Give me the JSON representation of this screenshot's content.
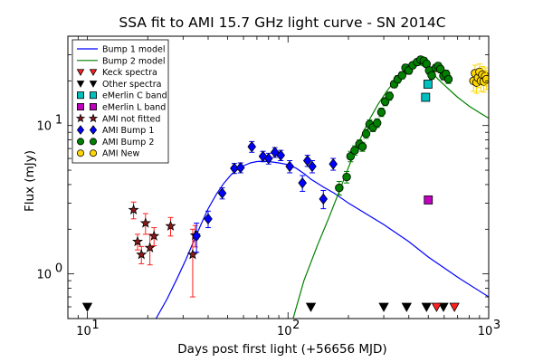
{
  "chart_data": {
    "type": "scatter",
    "title": "SSA fit to AMI 15.7 GHz light curve - SN 2014C",
    "xlabel": "Days post first light (+56656 MJD)",
    "ylabel": "Flux (mJy)",
    "xscale": "log",
    "yscale": "log",
    "xlim": [
      8,
      1000
    ],
    "ylim": [
      0.5,
      40
    ],
    "x_ticks": [
      {
        "value": 10,
        "label": "10^1",
        "base": "10",
        "exp": "1"
      },
      {
        "value": 100,
        "label": "10^2",
        "base": "10",
        "exp": "2"
      },
      {
        "value": 1000,
        "label": "10^3",
        "base": "10",
        "exp": "3"
      }
    ],
    "y_ticks": [
      {
        "value": 1,
        "label": "10^0",
        "base": "10",
        "exp": "0"
      },
      {
        "value": 10,
        "label": "10^1",
        "base": "10",
        "exp": "1"
      }
    ],
    "legend_position": "top-left",
    "legend": [
      {
        "label": "Bump 1 model",
        "type": "line",
        "color": "#0000ff"
      },
      {
        "label": "Bump 2 model",
        "type": "line",
        "color": "#008000"
      },
      {
        "label": "Keck spectra",
        "type": "marker",
        "marker": "triangle-down",
        "color": "#ff2020"
      },
      {
        "label": "Other spectra",
        "type": "marker",
        "marker": "triangle-down",
        "color": "#000000"
      },
      {
        "label": "eMerlin C band",
        "type": "marker",
        "marker": "square",
        "color": "#00bfbf"
      },
      {
        "label": "eMerlin L band",
        "type": "marker",
        "marker": "square",
        "color": "#bf00bf"
      },
      {
        "label": "AMI not fitted",
        "type": "marker",
        "marker": "star",
        "color": "#8b1a1a"
      },
      {
        "label": "AMI Bump 1",
        "type": "marker",
        "marker": "diamond",
        "color": "#0000ff"
      },
      {
        "label": "AMI Bump 2",
        "type": "marker",
        "marker": "circle",
        "color": "#008000"
      },
      {
        "label": "AMI New",
        "type": "marker",
        "marker": "circle",
        "color": "#ffd700"
      }
    ],
    "series": [
      {
        "name": "Bump 1 model",
        "type": "line",
        "color": "#0000ff",
        "points": [
          [
            22,
            0.5
          ],
          [
            25,
            0.68
          ],
          [
            28,
            0.93
          ],
          [
            31,
            1.25
          ],
          [
            34,
            1.68
          ],
          [
            37,
            2.18
          ],
          [
            40,
            2.75
          ],
          [
            44,
            3.45
          ],
          [
            48,
            4.1
          ],
          [
            52,
            4.65
          ],
          [
            56,
            5.05
          ],
          [
            60,
            5.35
          ],
          [
            65,
            5.6
          ],
          [
            70,
            5.72
          ],
          [
            75,
            5.75
          ],
          [
            80,
            5.72
          ],
          [
            90,
            5.6
          ],
          [
            100,
            5.45
          ],
          [
            110,
            5.15
          ],
          [
            120,
            4.75
          ],
          [
            130,
            4.35
          ],
          [
            150,
            3.85
          ],
          [
            170,
            3.5
          ],
          [
            200,
            3.0
          ],
          [
            300,
            2.15
          ],
          [
            400,
            1.65
          ],
          [
            500,
            1.3
          ],
          [
            700,
            0.95
          ],
          [
            1000,
            0.7
          ]
        ]
      },
      {
        "name": "Bump 2 model",
        "type": "line",
        "color": "#008000",
        "points": [
          [
            106,
            0.5
          ],
          [
            120,
            0.9
          ],
          [
            140,
            1.55
          ],
          [
            160,
            2.4
          ],
          [
            180,
            3.6
          ],
          [
            200,
            5.2
          ],
          [
            220,
            7.2
          ],
          [
            250,
            10.5
          ],
          [
            280,
            13.8
          ],
          [
            310,
            17.0
          ],
          [
            340,
            20.0
          ],
          [
            370,
            22.5
          ],
          [
            400,
            24.3
          ],
          [
            430,
            25.5
          ],
          [
            460,
            25.6
          ],
          [
            490,
            24.5
          ],
          [
            520,
            22.8
          ],
          [
            560,
            20.5
          ],
          [
            620,
            18.0
          ],
          [
            700,
            15.5
          ],
          [
            800,
            13.5
          ],
          [
            900,
            12.2
          ],
          [
            1000,
            11.2
          ]
        ]
      },
      {
        "name": "AMI not fitted",
        "marker": "star",
        "color": "#8b1a1a",
        "errcolor": "#ff2020",
        "points": [
          [
            17,
            2.7,
            0.35
          ],
          [
            17.8,
            1.65,
            0.2
          ],
          [
            18.6,
            1.35,
            0.18
          ],
          [
            19.5,
            2.2,
            0.35
          ],
          [
            20.5,
            1.5,
            0.35
          ],
          [
            21.5,
            1.8,
            0.25
          ],
          [
            26,
            2.1,
            0.3
          ],
          [
            33.5,
            1.35,
            0.65
          ],
          [
            34.5,
            1.82,
            0.3
          ]
        ]
      },
      {
        "name": "AMI Bump 1",
        "marker": "diamond",
        "color": "#0000ff",
        "errcolor": "#0000ff",
        "points": [
          [
            35,
            1.8,
            0.4
          ],
          [
            40,
            2.35,
            0.3
          ],
          [
            47,
            3.5,
            0.3
          ],
          [
            54,
            5.15,
            0.4
          ],
          [
            58,
            5.2,
            0.4
          ],
          [
            66,
            7.2,
            0.6
          ],
          [
            75,
            6.2,
            0.5
          ],
          [
            80,
            6.0,
            0.5
          ],
          [
            86,
            6.6,
            0.5
          ],
          [
            92,
            6.3,
            0.5
          ],
          [
            102,
            5.3,
            0.5
          ],
          [
            118,
            4.1,
            0.5
          ],
          [
            125,
            5.8,
            0.5
          ],
          [
            132,
            5.3,
            0.5
          ],
          [
            150,
            3.2,
            0.45
          ],
          [
            168,
            5.5,
            0.5
          ]
        ]
      },
      {
        "name": "AMI Bump 2",
        "marker": "circle",
        "color": "#008000",
        "errcolor": "#008000",
        "points": [
          [
            180,
            3.8,
            0.4
          ],
          [
            196,
            4.5,
            0.4
          ],
          [
            205,
            6.2,
            0.5
          ],
          [
            215,
            6.8,
            0.5
          ],
          [
            227,
            7.5,
            0.5
          ],
          [
            235,
            7.2,
            0.5
          ],
          [
            245,
            8.8,
            0.6
          ],
          [
            255,
            10.2,
            0.7
          ],
          [
            265,
            9.7,
            0.6
          ],
          [
            278,
            10.4,
            0.7
          ],
          [
            292,
            12.3,
            0.8
          ],
          [
            305,
            14.5,
            0.9
          ],
          [
            320,
            15.8,
            1.0
          ],
          [
            338,
            19.0,
            1.0
          ],
          [
            352,
            20.5,
            1.2
          ],
          [
            370,
            21.8,
            1.2
          ],
          [
            385,
            24.5,
            1.3
          ],
          [
            400,
            23.5,
            1.3
          ],
          [
            418,
            25.5,
            1.3
          ],
          [
            440,
            26.8,
            1.3
          ],
          [
            458,
            27.8,
            1.4
          ],
          [
            475,
            27.3,
            1.4
          ],
          [
            490,
            26.0,
            1.4
          ],
          [
            505,
            23.5,
            1.3
          ],
          [
            520,
            21.8,
            1.3
          ],
          [
            545,
            24.5,
            1.3
          ],
          [
            560,
            25.2,
            1.3
          ],
          [
            575,
            24.0,
            1.3
          ],
          [
            595,
            21.6,
            1.3
          ],
          [
            612,
            22.3,
            1.3
          ],
          [
            630,
            20.5,
            1.3
          ]
        ]
      },
      {
        "name": "AMI New",
        "marker": "circle",
        "color": "#ffd700",
        "errcolor": "#ffd700",
        "points": [
          [
            840,
            20.0,
            3.0
          ],
          [
            855,
            22.5,
            3.0
          ],
          [
            870,
            19.5,
            3.0
          ],
          [
            885,
            21.0,
            3.0
          ],
          [
            900,
            23.0,
            3.0
          ],
          [
            915,
            20.0,
            3.0
          ],
          [
            930,
            22.0,
            3.0
          ],
          [
            945,
            19.8,
            3.0
          ],
          [
            960,
            21.5,
            3.0
          ],
          [
            975,
            20.5,
            3.0
          ]
        ]
      },
      {
        "name": "eMerlin C band",
        "marker": "square",
        "color": "#00bfbf",
        "points": [
          [
            498,
            19.0
          ],
          [
            485,
            15.5
          ]
        ]
      },
      {
        "name": "eMerlin L band",
        "marker": "square",
        "color": "#bf00bf",
        "points": [
          [
            500,
            3.15
          ]
        ]
      },
      {
        "name": "Other spectra",
        "marker": "triangle-down",
        "color": "#000000",
        "points": [
          [
            10,
            0.6
          ],
          [
            130,
            0.6
          ],
          [
            300,
            0.6
          ],
          [
            390,
            0.6
          ],
          [
            490,
            0.6
          ],
          [
            595,
            0.6
          ]
        ]
      },
      {
        "name": "Keck spectra",
        "marker": "triangle-down",
        "color": "#ff2020",
        "points": [
          [
            550,
            0.6
          ],
          [
            675,
            0.6
          ]
        ]
      }
    ]
  }
}
